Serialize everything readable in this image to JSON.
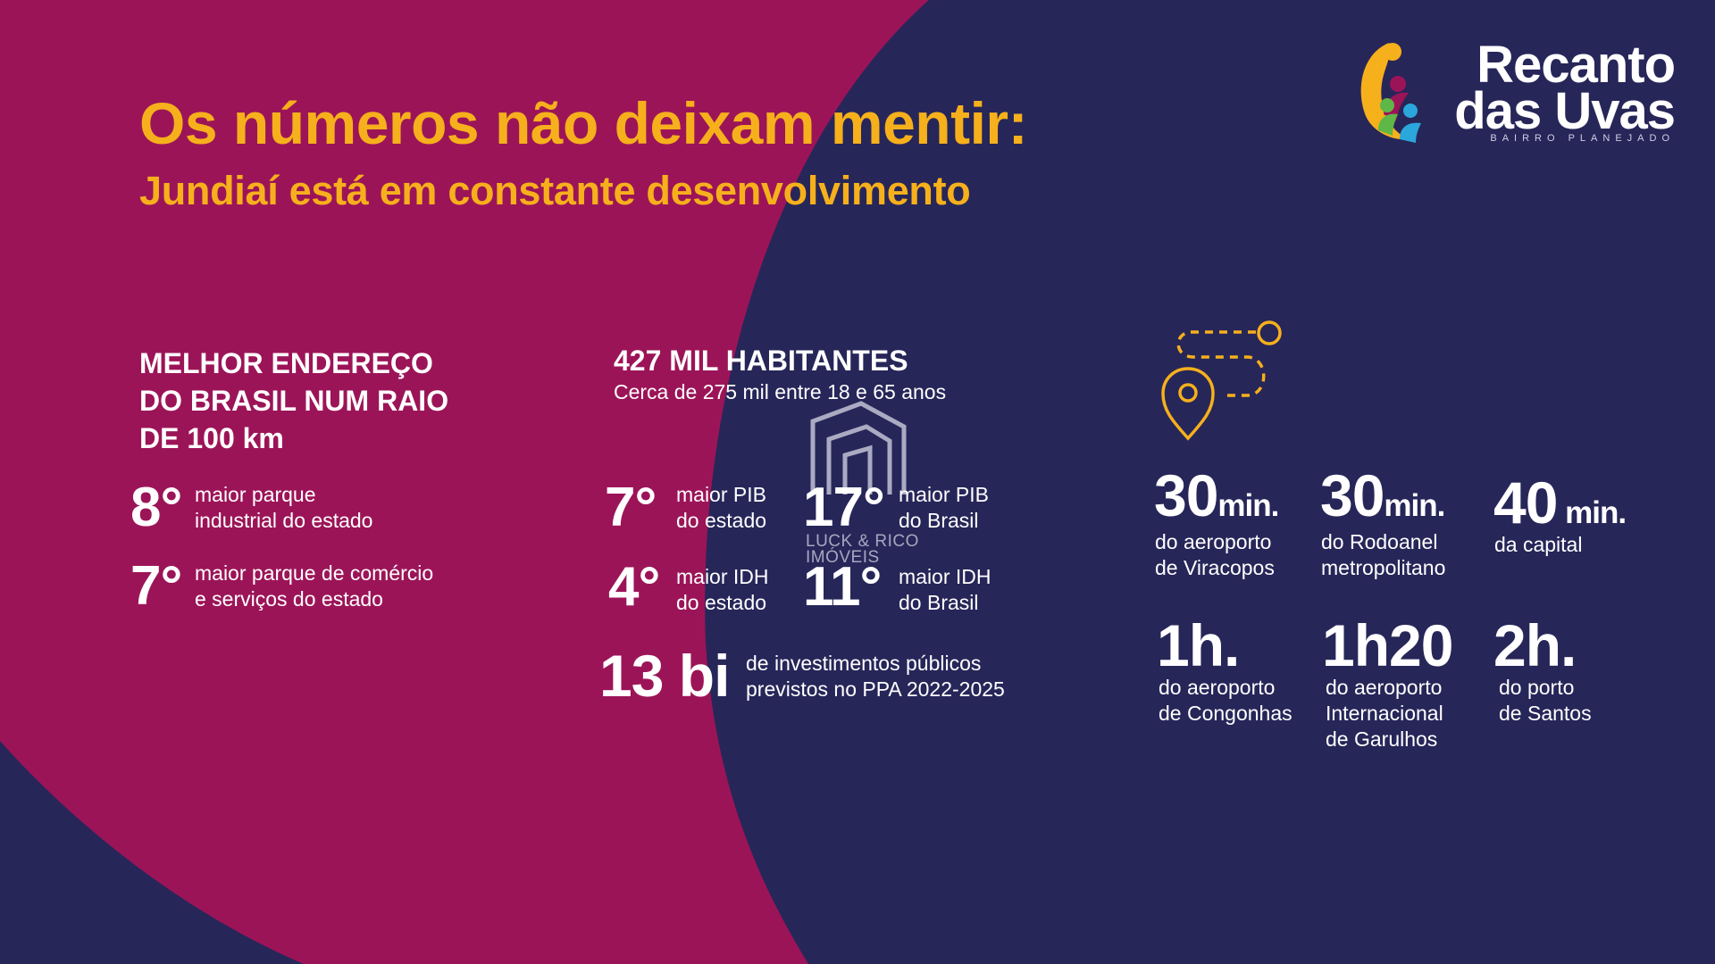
{
  "header": {
    "title": "Os números não deixam mentir:",
    "subtitle": "Jundiaí está em constante desenvolvimento"
  },
  "logo": {
    "line1": "Recanto",
    "line2": "das Uvas",
    "tagline": "BAIRRO PLANEJADO",
    "icon": "people-icon"
  },
  "section_address": {
    "heading_lines": [
      "MELHOR ENDEREÇO",
      "DO BRASIL NUM RAIO",
      "DE 100 km"
    ],
    "items": [
      {
        "rank": "8°",
        "desc_lines": [
          "maior parque",
          "industrial do estado"
        ]
      },
      {
        "rank": "7°",
        "desc_lines": [
          "maior parque de comércio",
          "e serviços do estado"
        ]
      }
    ]
  },
  "section_population": {
    "heading": "427 MIL HABITANTES",
    "subheading": "Cerca de 275 mil entre 18 e 65 anos",
    "items": [
      {
        "rank": "7°",
        "desc_lines": [
          "maior PIB",
          "do estado"
        ]
      },
      {
        "rank": "17°",
        "desc_lines": [
          "maior PIB",
          "do Brasil"
        ]
      },
      {
        "rank": "4°",
        "desc_lines": [
          "maior IDH",
          "do estado"
        ]
      },
      {
        "rank": "11°",
        "desc_lines": [
          "maior IDH",
          "do Brasil"
        ]
      }
    ],
    "investment": {
      "value": "13 bi",
      "desc_lines": [
        "de investimentos públicos",
        "previstos no PPA 2022-2025"
      ]
    }
  },
  "section_distances": {
    "icon": "route-pin-icon",
    "items": [
      {
        "value": "30",
        "unit": "min.",
        "desc_lines": [
          "do aeroporto",
          "de Viracopos"
        ]
      },
      {
        "value": "30",
        "unit": "min.",
        "desc_lines": [
          "do Rodoanel",
          "metropolitano"
        ]
      },
      {
        "value": "40",
        "unit": " min.",
        "desc_lines": [
          "da capital"
        ]
      },
      {
        "value": "1h.",
        "unit": "",
        "desc_lines": [
          "do aeroporto",
          "de Congonhas"
        ]
      },
      {
        "value": "1h20",
        "unit": "",
        "desc_lines": [
          "do aeroporto",
          "Internacional",
          "de Garulhos"
        ]
      },
      {
        "value": "2h.",
        "unit": "",
        "desc_lines": [
          "do porto",
          "de Santos"
        ]
      }
    ]
  },
  "watermark": {
    "line1": "LUCK & RICO",
    "line2": "IMÓVEIS",
    "icon": "building-icon"
  },
  "colors": {
    "navy": "#272659",
    "magenta": "#9c1458",
    "yellow": "#f6b01c"
  }
}
